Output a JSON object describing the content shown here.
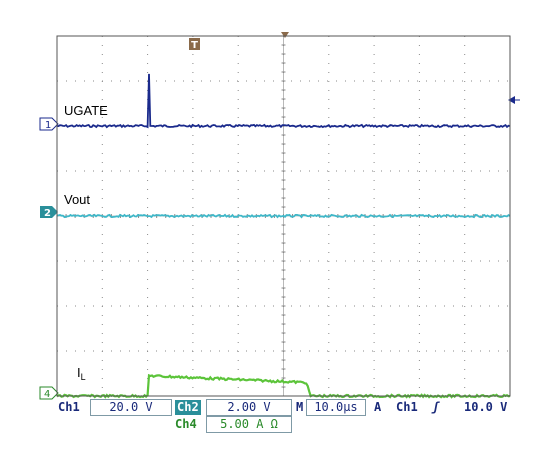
{
  "chart_data": {
    "type": "line",
    "title": "",
    "grid": true,
    "divisions": {
      "x": 10,
      "y": 8
    },
    "time_per_div_us": 10.0,
    "x_range_us": [
      -20,
      80
    ],
    "series": [
      {
        "name": "UGATE",
        "channel": "1",
        "color": "#1a2a8c",
        "x_us": [
          -20,
          0,
          0.3,
          0.6,
          1.0,
          80
        ],
        "y_div": [
          2.0,
          2.0,
          3.15,
          2.0,
          2.0,
          2.0
        ]
      },
      {
        "name": "Vout",
        "channel": "2",
        "color": "#3fb7c8",
        "x_us": [
          -20,
          80
        ],
        "y_div": [
          0.0,
          0.0
        ]
      },
      {
        "name": "IL",
        "channel": "4",
        "color": "#5cc43a",
        "x_us": [
          -20,
          0,
          0.3,
          35.0,
          36.0,
          80
        ],
        "y_div": [
          -4.0,
          -4.0,
          -3.55,
          -3.7,
          -4.0,
          -4.0
        ]
      }
    ],
    "trigger": {
      "marker": "T",
      "time_us": 0
    }
  },
  "labels": {
    "ch1_trace": "UGATE",
    "ch2_trace": "Vout",
    "ch4_trace_main": "I",
    "ch4_trace_sub": "L"
  },
  "markers": {
    "ch1": "1",
    "ch2": "2",
    "ch4": "4",
    "trigger": "T"
  },
  "status": {
    "ch1_label": "Ch1",
    "ch1_scale": "20.0 V",
    "ch2_label": "Ch2",
    "ch2_scale": "2.00 V",
    "ch4_label": "Ch4",
    "ch4_scale": "5.00 A Ω",
    "timebase_label": "M",
    "timebase": "10.0µs",
    "acq_label": "A",
    "trigger_source": "Ch1",
    "trigger_slope": "ʃ",
    "trigger_level": "10.0 V"
  },
  "colors": {
    "grid": "#8a8a8a",
    "background": "#ffffff",
    "frame": "#555555",
    "ch1": "#1a2a8c",
    "ch2": "#3fb7c8",
    "ch4": "#5cc43a"
  }
}
